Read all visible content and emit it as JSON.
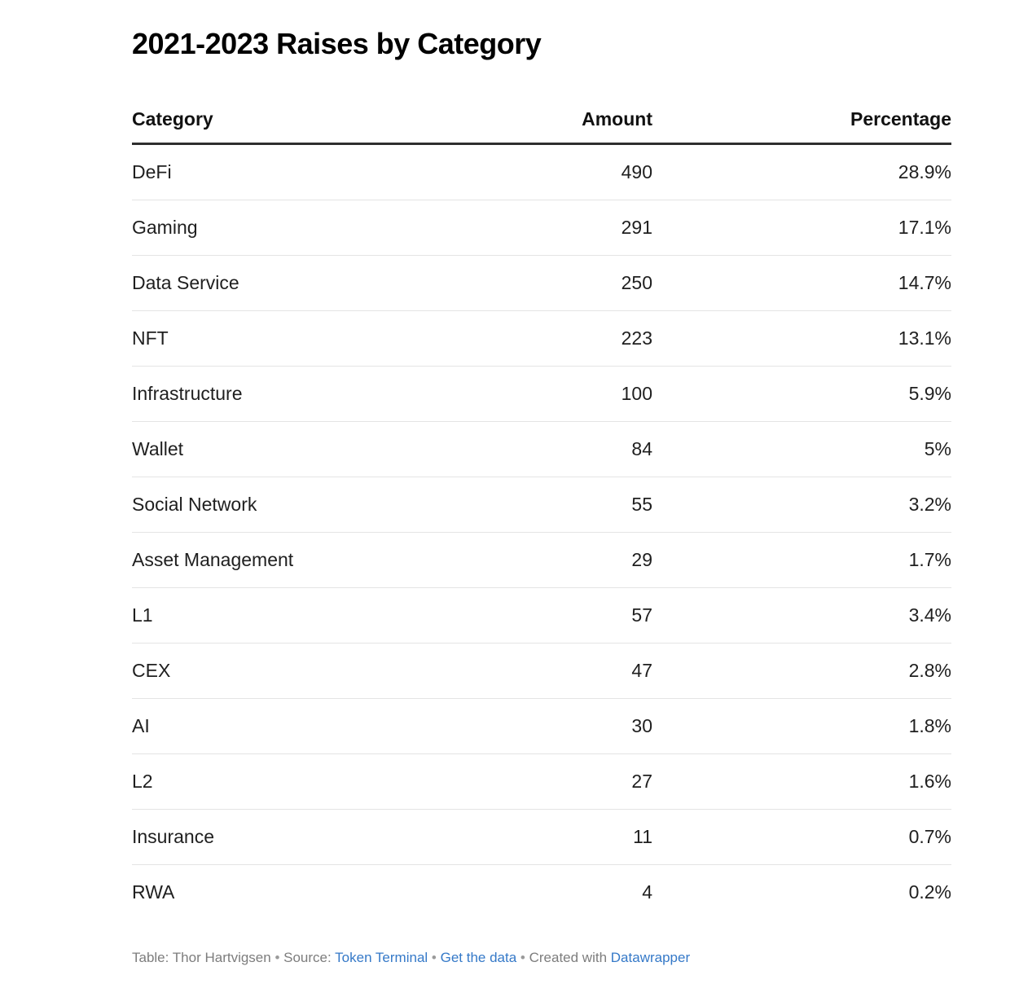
{
  "title": "2021-2023 Raises by Category",
  "colors": {
    "title_text": "#000000",
    "body_text": "#1f1f1f",
    "header_border": "#2e2e2e",
    "row_separator": "#e4e4e4",
    "footer_text": "#7d7d7d",
    "link_blue": "#3579c8",
    "background": "#ffffff"
  },
  "table": {
    "columns": {
      "category": "Category",
      "amount": "Amount",
      "percentage": "Percentage"
    },
    "rows": [
      {
        "category": "DeFi",
        "amount": "490",
        "percentage": "28.9%"
      },
      {
        "category": "Gaming",
        "amount": "291",
        "percentage": "17.1%"
      },
      {
        "category": "Data Service",
        "amount": "250",
        "percentage": "14.7%"
      },
      {
        "category": "NFT",
        "amount": "223",
        "percentage": "13.1%"
      },
      {
        "category": "Infrastructure",
        "amount": "100",
        "percentage": "5.9%"
      },
      {
        "category": "Wallet",
        "amount": "84",
        "percentage": "5%"
      },
      {
        "category": "Social Network",
        "amount": "55",
        "percentage": "3.2%"
      },
      {
        "category": "Asset Management",
        "amount": "29",
        "percentage": "1.7%"
      },
      {
        "category": "L1",
        "amount": "57",
        "percentage": "3.4%"
      },
      {
        "category": "CEX",
        "amount": "47",
        "percentage": "2.8%"
      },
      {
        "category": "AI",
        "amount": "30",
        "percentage": "1.8%"
      },
      {
        "category": "L2",
        "amount": "27",
        "percentage": "1.6%"
      },
      {
        "category": "Insurance",
        "amount": "11",
        "percentage": "0.7%"
      },
      {
        "category": "RWA",
        "amount": "4",
        "percentage": "0.2%"
      }
    ]
  },
  "footer": {
    "table_credit": "Table: Thor Hartvigsen",
    "sep1": "•",
    "source_label": "Source:",
    "source_link": "Token Terminal",
    "sep2": "•",
    "data_link": "Get the data",
    "sep3": "•",
    "created_with": "Created with",
    "tool_link": "Datawrapper"
  },
  "chart_data": {
    "type": "table",
    "title": "2021-2023 Raises by Category",
    "columns": [
      "Category",
      "Amount",
      "Percentage"
    ],
    "categories": [
      "DeFi",
      "Gaming",
      "Data Service",
      "NFT",
      "Infrastructure",
      "Wallet",
      "Social Network",
      "Asset Management",
      "L1",
      "CEX",
      "AI",
      "L2",
      "Insurance",
      "RWA"
    ],
    "series": [
      {
        "name": "Amount",
        "values": [
          490,
          291,
          250,
          223,
          100,
          84,
          55,
          29,
          57,
          47,
          30,
          27,
          11,
          4
        ]
      },
      {
        "name": "Percentage",
        "values": [
          28.9,
          17.1,
          14.7,
          13.1,
          5.9,
          5,
          3.2,
          1.7,
          3.4,
          2.8,
          1.8,
          1.6,
          0.7,
          0.2
        ]
      }
    ]
  }
}
